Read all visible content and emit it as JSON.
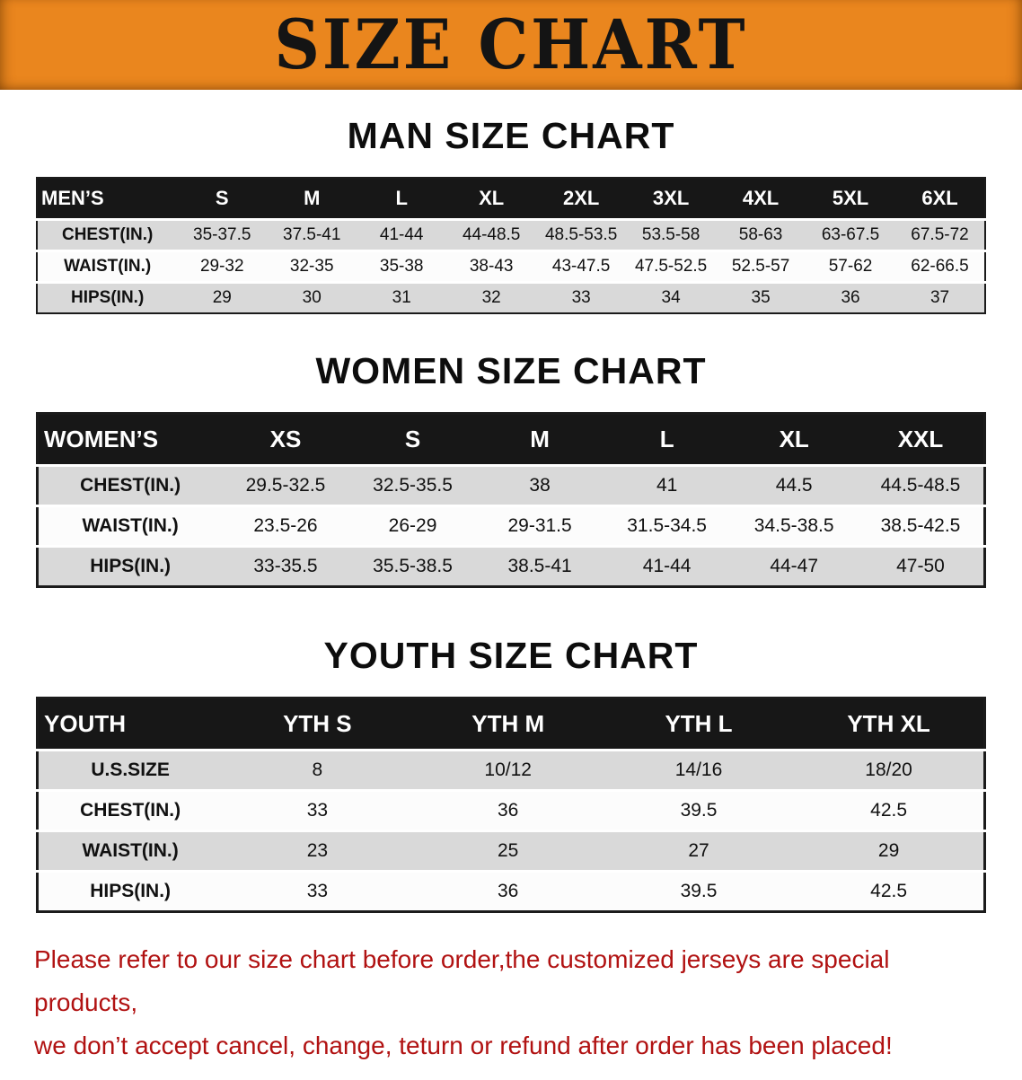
{
  "banner": {
    "title": "SIZE CHART"
  },
  "colors": {
    "banner_bg": "#ea861e",
    "banner_text": "#141414",
    "table_header_bg": "#171717",
    "table_header_text": "#ffffff",
    "row_stripe": "#d9d9d9",
    "row_alt": "#fcfcfc",
    "disclaimer_text": "#b11212"
  },
  "chart_data": [
    {
      "type": "table",
      "id": "mens",
      "title": "MAN SIZE CHART",
      "columns": [
        "MEN’S",
        "S",
        "M",
        "L",
        "XL",
        "2XL",
        "3XL",
        "4XL",
        "5XL",
        "6XL"
      ],
      "rows": [
        [
          "CHEST(IN.)",
          "35-37.5",
          "37.5-41",
          "41-44",
          "44-48.5",
          "48.5-53.5",
          "53.5-58",
          "58-63",
          "63-67.5",
          "67.5-72"
        ],
        [
          "WAIST(IN.)",
          "29-32",
          "32-35",
          "35-38",
          "38-43",
          "43-47.5",
          "47.5-52.5",
          "52.5-57",
          "57-62",
          "62-66.5"
        ],
        [
          "HIPS(IN.)",
          "29",
          "30",
          "31",
          "32",
          "33",
          "34",
          "35",
          "36",
          "37"
        ]
      ]
    },
    {
      "type": "table",
      "id": "womens",
      "title": "WOMEN SIZE CHART",
      "columns": [
        "WOMEN’S",
        "XS",
        "S",
        "M",
        "L",
        "XL",
        "XXL"
      ],
      "rows": [
        [
          "CHEST(IN.)",
          "29.5-32.5",
          "32.5-35.5",
          "38",
          "41",
          "44.5",
          "44.5-48.5"
        ],
        [
          "WAIST(IN.)",
          "23.5-26",
          "26-29",
          "29-31.5",
          "31.5-34.5",
          "34.5-38.5",
          "38.5-42.5"
        ],
        [
          "HIPS(IN.)",
          "33-35.5",
          "35.5-38.5",
          "38.5-41",
          "41-44",
          "44-47",
          "47-50"
        ]
      ]
    },
    {
      "type": "table",
      "id": "youth",
      "title": "YOUTH SIZE CHART",
      "columns": [
        "YOUTH",
        "YTH S",
        "YTH M",
        "YTH L",
        "YTH XL"
      ],
      "rows": [
        [
          "U.S.SIZE",
          "8",
          "10/12",
          "14/16",
          "18/20"
        ],
        [
          "CHEST(IN.)",
          "33",
          "36",
          "39.5",
          "42.5"
        ],
        [
          "WAIST(IN.)",
          "23",
          "25",
          "27",
          "29"
        ],
        [
          "HIPS(IN.)",
          "33",
          "36",
          "39.5",
          "42.5"
        ]
      ]
    }
  ],
  "footer": {
    "lines": [
      "Please refer to our size chart before order,the customized jerseys are special products,",
      "we don’t accept cancel, change, teturn or refund after order has been placed!"
    ]
  }
}
